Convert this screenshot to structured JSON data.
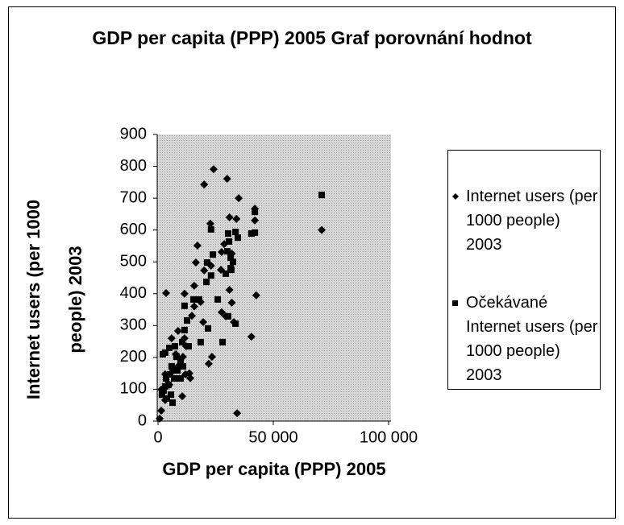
{
  "chart_data": {
    "type": "scatter",
    "title": "GDP per capita (PPP) 2005 Graf porovnání hodnot",
    "x_label": "GDP per capita (PPP) 2005",
    "y_label": "Internet users (per 1000 people) 2003",
    "xlim": [
      0,
      100000
    ],
    "xticks": [
      0,
      {
        "value": 50000,
        "label": "50 000"
      },
      {
        "value": 100000,
        "label": "100 000"
      }
    ],
    "ylim": [
      0,
      900
    ],
    "yticks": [
      0,
      100,
      200,
      300,
      400,
      500,
      600,
      700,
      800,
      900
    ],
    "grid": false,
    "legend": "right",
    "series": [
      {
        "name": "Internet users (per 1000 people) 2003",
        "color": "#000000",
        "marker": "diamond",
        "x": [
          24100,
          20000,
          30000,
          35000,
          31000,
          34000,
          22700,
          71000,
          42000,
          42000,
          42600,
          40500,
          34300,
          3500,
          15700,
          15700,
          16400,
          11500,
          8700,
          11500,
          13600,
          14000,
          22000,
          23400,
          27600,
          29400,
          31000,
          32000,
          32900,
          27300,
          23000,
          20000,
          18500,
          19600,
          14700,
          12200,
          7700,
          5900,
          3100,
          1400,
          1400,
          700,
          3100,
          4900,
          6600,
          8700,
          10800,
          11900,
          10500,
          17100,
          28700,
          32000,
          27600
        ],
        "values": [
          791,
          743,
          761,
          700,
          640,
          635,
          620,
          600,
          667,
          630,
          395,
          265,
          25,
          402,
          360,
          425,
          498,
          400,
          283,
          260,
          150,
          135,
          180,
          202,
          342,
          329,
          412,
          372,
          311,
          475,
          488,
          473,
          374,
          311,
          331,
          235,
          210,
          260,
          147,
          99,
          33,
          8,
          66,
          114,
          159,
          172,
          202,
          147,
          78,
          551,
          556,
          526,
          531
        ]
      },
      {
        "name": "Očekávané Internet users (per 1000 people) 2003",
        "color": "#000000",
        "marker": "square",
        "x": [
          71000,
          42000,
          42000,
          40500,
          34600,
          33600,
          30400,
          30800,
          31800,
          29400,
          30100,
          31500,
          32500,
          31500,
          30400,
          33600,
          28000,
          25900,
          23800,
          21300,
          23000,
          21000,
          23000,
          17800,
          15400,
          11500,
          12600,
          11500,
          21700,
          18500,
          13300,
          10500,
          7300,
          4900,
          3100,
          2100,
          8000,
          9800,
          5900,
          8400,
          3500,
          4500,
          5600,
          2400,
          3800,
          6300,
          1700,
          3100,
          10800,
          9800,
          7000,
          5200
        ],
        "values": [
          710,
          657,
          592,
          589,
          576,
          594,
          589,
          564,
          475,
          463,
          533,
          513,
          500,
          480,
          329,
          306,
          248,
          382,
          523,
          498,
          457,
          437,
          602,
          382,
          382,
          362,
          316,
          286,
          291,
          248,
          235,
          248,
          235,
          230,
          215,
          210,
          202,
          190,
          172,
          159,
          134,
          114,
          83,
          96,
          71,
          58,
          83,
          109,
          172,
          134,
          134,
          147
        ]
      }
    ]
  }
}
